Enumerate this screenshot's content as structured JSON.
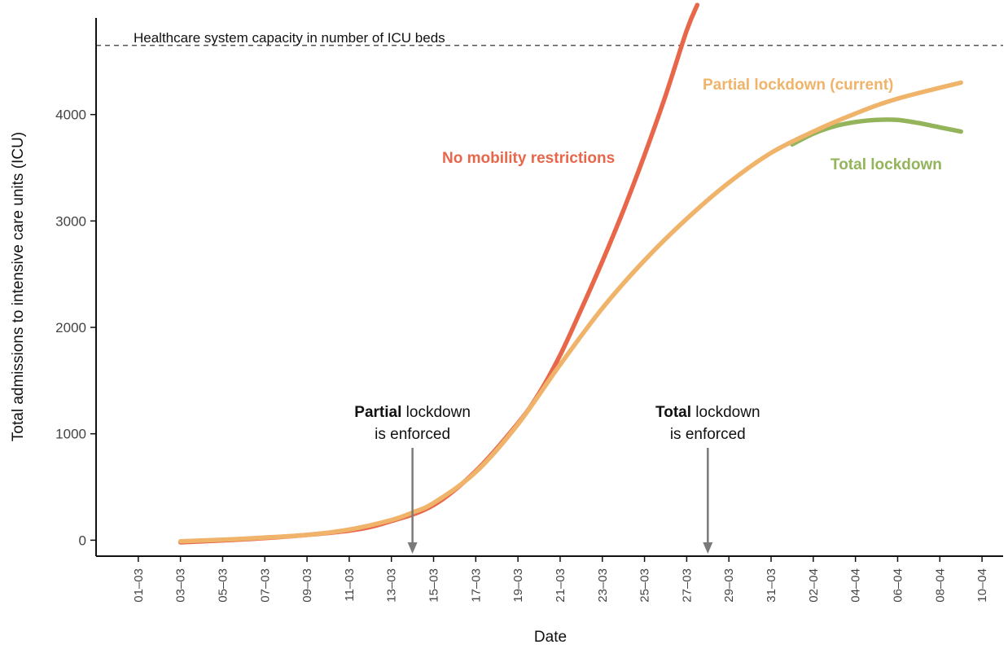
{
  "chart_data": {
    "type": "line",
    "xlabel": "Date",
    "ylabel": "Total admissions to intensive care units (ICU)",
    "x_ticks": [
      "01–03",
      "03–03",
      "05–03",
      "07–03",
      "09–03",
      "11–03",
      "13–03",
      "15–03",
      "17–03",
      "19–03",
      "21–03",
      "23–03",
      "25–03",
      "27–03",
      "29–03",
      "31–03",
      "02–04",
      "04–04",
      "06–04",
      "08–04",
      "10–04"
    ],
    "y_ticks": [
      "0",
      "1000",
      "2000",
      "3000",
      "4000"
    ],
    "xlim": [
      "2020-02-28",
      "2020-04-11"
    ],
    "ylim": [
      -150,
      5000
    ],
    "capacity": {
      "label": "Healthcare system capacity in number of ICU beds",
      "value": 4650
    },
    "series": [
      {
        "name": "No mobility restrictions",
        "color": "#e8674a",
        "x": [
          "2020-03-03",
          "2020-03-07",
          "2020-03-11",
          "2020-03-13",
          "2020-03-15",
          "2020-03-17",
          "2020-03-19",
          "2020-03-20",
          "2020-03-21",
          "2020-03-22",
          "2020-03-23",
          "2020-03-24",
          "2020-03-25",
          "2020-03-26",
          "2020-03-27",
          "2020-03-27T12:00"
        ],
        "values": [
          -20,
          20,
          90,
          180,
          330,
          650,
          1100,
          1380,
          1740,
          2170,
          2620,
          3100,
          3620,
          4180,
          4790,
          5030
        ]
      },
      {
        "name": "Total lockdown",
        "color": "#93b45a",
        "x": [
          "2020-04-01",
          "2020-04-02",
          "2020-04-03",
          "2020-04-04",
          "2020-04-05",
          "2020-04-06",
          "2020-04-07",
          "2020-04-08",
          "2020-04-09"
        ],
        "values": [
          3720,
          3820,
          3890,
          3930,
          3950,
          3950,
          3920,
          3880,
          3840
        ]
      },
      {
        "name": "Partial lockdown (current)",
        "color": "#f0b36a",
        "x": [
          "2020-03-03",
          "2020-03-05",
          "2020-03-07",
          "2020-03-09",
          "2020-03-11",
          "2020-03-13",
          "2020-03-14",
          "2020-03-15",
          "2020-03-17",
          "2020-03-19",
          "2020-03-21",
          "2020-03-23",
          "2020-03-25",
          "2020-03-27",
          "2020-03-29",
          "2020-03-31",
          "2020-04-02",
          "2020-04-04",
          "2020-04-06",
          "2020-04-09"
        ],
        "values": [
          -10,
          5,
          25,
          50,
          100,
          190,
          260,
          350,
          640,
          1090,
          1650,
          2180,
          2630,
          3020,
          3360,
          3640,
          3840,
          4010,
          4150,
          4300
        ]
      }
    ],
    "annotations": [
      {
        "bold": "Partial",
        "rest": " lockdown",
        "line2": "is enforced",
        "x": "2020-03-14"
      },
      {
        "bold": "Total",
        "rest": " lockdown",
        "line2": "is enforced",
        "x": "2020-03-28"
      }
    ],
    "arrow_color": "#7a7a7a",
    "legend": "labels placed next to each curve"
  }
}
